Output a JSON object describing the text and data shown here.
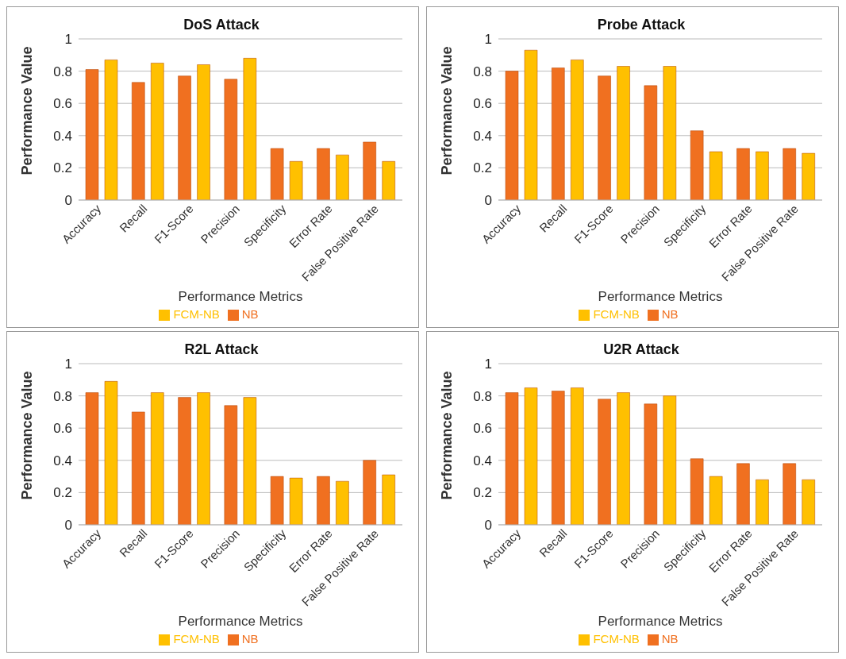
{
  "chart_data": [
    {
      "type": "bar",
      "title": "DoS Attack",
      "xlabel": "Performance Metrics",
      "ylabel": "Performance Value",
      "categories": [
        "Accuracy",
        "Recall",
        "F1-Score",
        "Precision",
        "Specificity",
        "Error Rate",
        "False Positive Rate"
      ],
      "series": [
        {
          "name": "NB",
          "color": "#f07020",
          "values": [
            0.81,
            0.73,
            0.77,
            0.75,
            0.32,
            0.32,
            0.36
          ]
        },
        {
          "name": "FCM-NB",
          "color": "#ffc000",
          "values": [
            0.87,
            0.85,
            0.84,
            0.88,
            0.24,
            0.28,
            0.24
          ]
        }
      ],
      "ylim": [
        0,
        1
      ],
      "yticks": [
        0,
        0.2,
        0.4,
        0.6,
        0.8,
        1
      ],
      "grid": "y",
      "legend": "bottom"
    },
    {
      "type": "bar",
      "title": "Probe Attack",
      "xlabel": "Performance Metrics",
      "ylabel": "Performance Value",
      "categories": [
        "Accuracy",
        "Recall",
        "F1-Score",
        "Precision",
        "Specificity",
        "Error Rate",
        "False Positive Rate"
      ],
      "series": [
        {
          "name": "NB",
          "color": "#f07020",
          "values": [
            0.8,
            0.82,
            0.77,
            0.71,
            0.43,
            0.32,
            0.32
          ]
        },
        {
          "name": "FCM-NB",
          "color": "#ffc000",
          "values": [
            0.93,
            0.87,
            0.83,
            0.83,
            0.3,
            0.3,
            0.29
          ]
        }
      ],
      "ylim": [
        0,
        1
      ],
      "yticks": [
        0,
        0.2,
        0.4,
        0.6,
        0.8,
        1
      ],
      "grid": "y",
      "legend": "bottom"
    },
    {
      "type": "bar",
      "title": "R2L Attack",
      "xlabel": "Performance Metrics",
      "ylabel": "Performance Value",
      "categories": [
        "Accuracy",
        "Recall",
        "F1-Score",
        "Precision",
        "Specificity",
        "Error Rate",
        "False Positive Rate"
      ],
      "series": [
        {
          "name": "NB",
          "color": "#f07020",
          "values": [
            0.82,
            0.7,
            0.79,
            0.74,
            0.3,
            0.3,
            0.4
          ]
        },
        {
          "name": "FCM-NB",
          "color": "#ffc000",
          "values": [
            0.89,
            0.82,
            0.82,
            0.79,
            0.29,
            0.27,
            0.31
          ]
        }
      ],
      "ylim": [
        0,
        1
      ],
      "yticks": [
        0,
        0.2,
        0.4,
        0.6,
        0.8,
        1
      ],
      "grid": "y",
      "legend": "bottom"
    },
    {
      "type": "bar",
      "title": "U2R Attack",
      "xlabel": "Performance Metrics",
      "ylabel": "Performance Value",
      "categories": [
        "Accuracy",
        "Recall",
        "F1-Score",
        "Precision",
        "Specificity",
        "Error Rate",
        "False Positive Rate"
      ],
      "series": [
        {
          "name": "NB",
          "color": "#f07020",
          "values": [
            0.82,
            0.83,
            0.78,
            0.75,
            0.41,
            0.38,
            0.38
          ]
        },
        {
          "name": "FCM-NB",
          "color": "#ffc000",
          "values": [
            0.85,
            0.85,
            0.82,
            0.8,
            0.3,
            0.28,
            0.28
          ]
        }
      ],
      "ylim": [
        0,
        1
      ],
      "yticks": [
        0,
        0.2,
        0.4,
        0.6,
        0.8,
        1
      ],
      "grid": "y",
      "legend": "bottom"
    }
  ]
}
